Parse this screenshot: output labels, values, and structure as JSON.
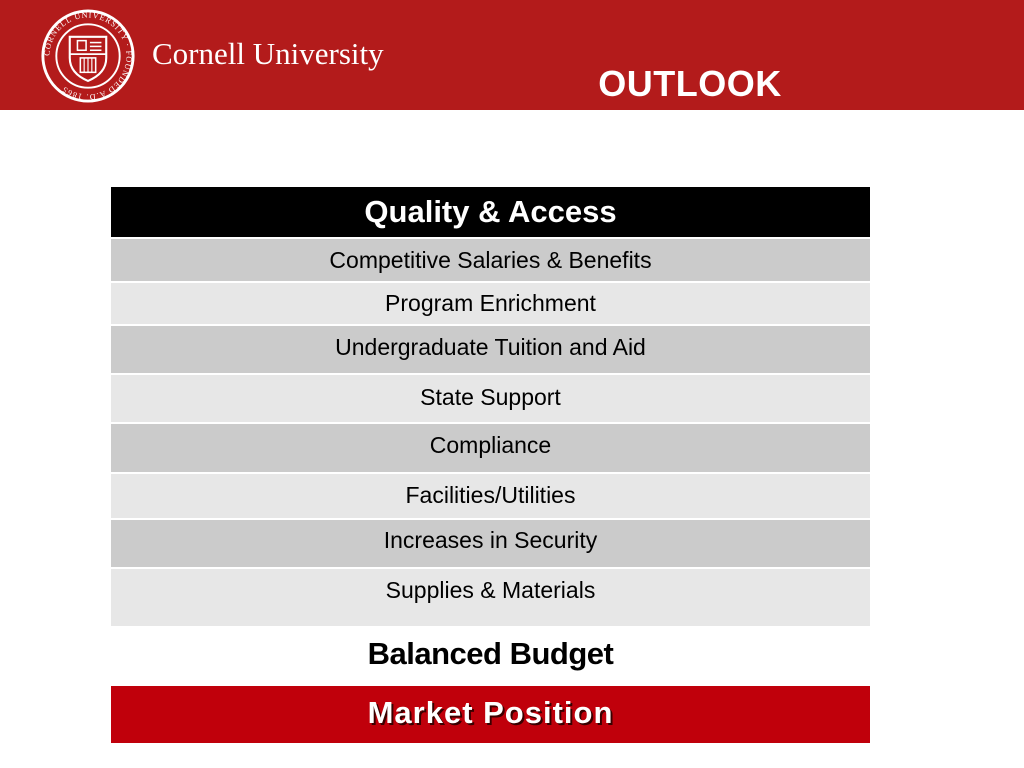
{
  "header": {
    "seal_text": "CORNELL UNIVERSITY · FOUNDED A.D. 1865",
    "brand": "Cornell University",
    "title": "OUTLOOK"
  },
  "table": {
    "header": "Quality & Access",
    "rows": [
      "Competitive Salaries & Benefits",
      "Program Enrichment",
      "Undergraduate Tuition and Aid",
      "State Support",
      "Compliance",
      "Facilities/Utilities",
      "Increases in Security",
      "Supplies & Materials"
    ]
  },
  "balanced_budget": "Balanced Budget",
  "market_position": "Market Position",
  "colors": {
    "header_bg": "#b31b1b",
    "table_header_bg": "#000000",
    "row_dark": "#cbcbcb",
    "row_light": "#e7e7e7",
    "market_bg": "#c0000b"
  }
}
